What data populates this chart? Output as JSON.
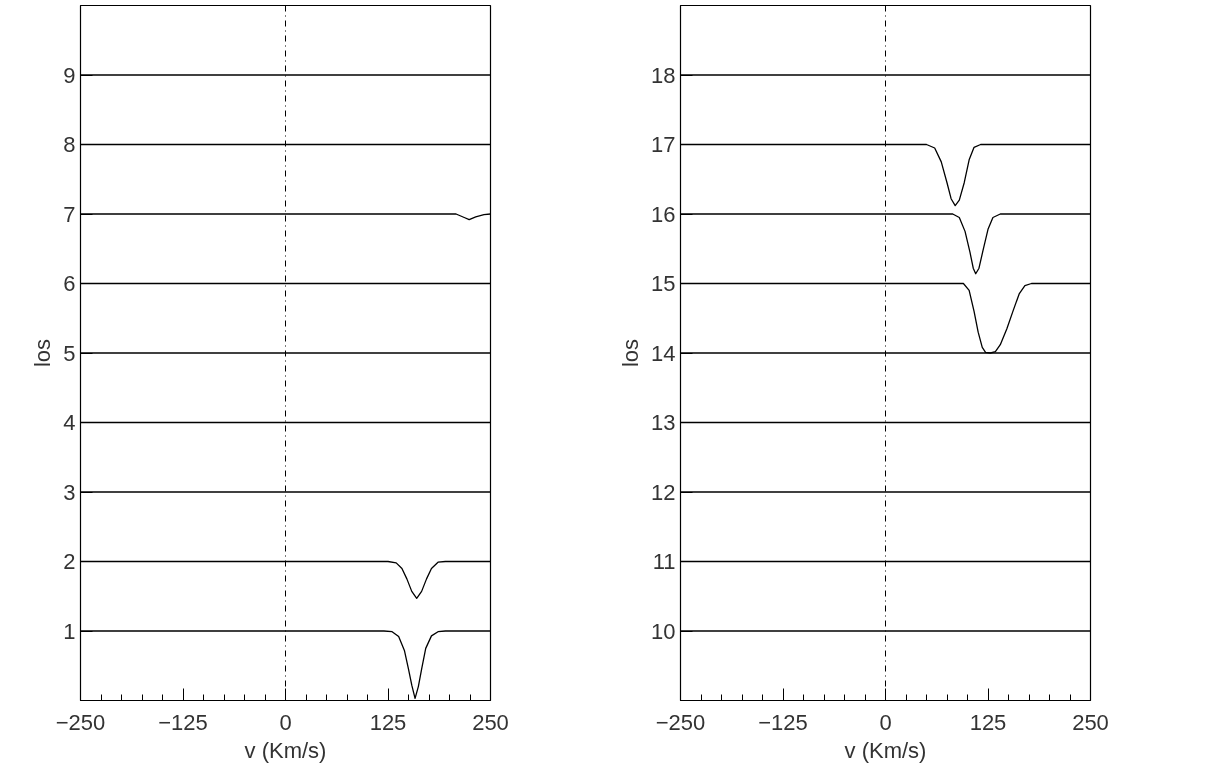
{
  "chart_data": [
    {
      "type": "line",
      "xlabel": "v (Km/s)",
      "ylabel": "los",
      "xlim": [
        -250,
        250
      ],
      "ylim": [
        0,
        10
      ],
      "xticks": [
        -250,
        {
          "value": -225,
          "label": null
        },
        {
          "value": -200,
          "label": null
        },
        {
          "value": -175,
          "label": null
        },
        {
          "value": -150,
          "label": null
        },
        -125,
        {
          "value": -100,
          "label": null
        },
        {
          "value": -75,
          "label": null
        },
        {
          "value": -50,
          "label": null
        },
        {
          "value": -25,
          "label": null
        },
        0,
        {
          "value": 25,
          "label": null
        },
        {
          "value": 50,
          "label": null
        },
        {
          "value": 75,
          "label": null
        },
        {
          "value": 100,
          "label": null
        },
        125,
        {
          "value": 150,
          "label": null
        },
        {
          "value": 175,
          "label": null
        },
        {
          "value": 200,
          "label": null
        },
        {
          "value": 225,
          "label": null
        },
        250
      ],
      "yticks": [
        1,
        2,
        3,
        4,
        5,
        6,
        7,
        8,
        9
      ],
      "grid": false,
      "line_style": "solid",
      "ref_lines": [
        {
          "axis": "x",
          "value": 0,
          "color": "#000000",
          "line_style": "dashdot"
        }
      ],
      "series": [
        {
          "color": "#000000",
          "x": [
            -250,
            120,
            130,
            138,
            145,
            150,
            154,
            158,
            162,
            166,
            171,
            178,
            186,
            195,
            250
          ],
          "values": [
            1,
            1,
            0.99,
            0.92,
            0.72,
            0.45,
            0.22,
            0.03,
            0.2,
            0.45,
            0.75,
            0.93,
            0.99,
            1,
            1
          ]
        },
        {
          "color": "#000000",
          "x": [
            -250,
            125,
            135,
            142,
            148,
            154,
            160,
            166,
            172,
            178,
            186,
            195,
            250
          ],
          "values": [
            2,
            2,
            1.98,
            1.9,
            1.75,
            1.57,
            1.47,
            1.57,
            1.75,
            1.9,
            1.99,
            2,
            2
          ]
        },
        {
          "color": "#000000",
          "x": [
            -250,
            250
          ],
          "values": [
            3,
            3
          ]
        },
        {
          "color": "#000000",
          "x": [
            -250,
            250
          ],
          "values": [
            4,
            4
          ]
        },
        {
          "color": "#000000",
          "x": [
            -250,
            250
          ],
          "values": [
            5,
            5
          ]
        },
        {
          "color": "#000000",
          "x": [
            -250,
            250
          ],
          "values": [
            6,
            6
          ]
        },
        {
          "color": "#000000",
          "x": [
            -250,
            208,
            218,
            224,
            232,
            242,
            250
          ],
          "values": [
            7,
            7,
            6.95,
            6.92,
            6.96,
            6.99,
            7
          ]
        },
        {
          "color": "#000000",
          "x": [
            -250,
            250
          ],
          "values": [
            8,
            8
          ]
        },
        {
          "color": "#000000",
          "x": [
            -250,
            250
          ],
          "values": [
            9,
            9
          ]
        }
      ]
    },
    {
      "type": "line",
      "xlabel": "v (Km/s)",
      "ylabel": "los",
      "xlim": [
        -250,
        250
      ],
      "ylim": [
        9,
        19
      ],
      "xticks": [
        -250,
        {
          "value": -225,
          "label": null
        },
        {
          "value": -200,
          "label": null
        },
        {
          "value": -175,
          "label": null
        },
        {
          "value": -150,
          "label": null
        },
        -125,
        {
          "value": -100,
          "label": null
        },
        {
          "value": -75,
          "label": null
        },
        {
          "value": -50,
          "label": null
        },
        {
          "value": -25,
          "label": null
        },
        0,
        {
          "value": 25,
          "label": null
        },
        {
          "value": 50,
          "label": null
        },
        {
          "value": 75,
          "label": null
        },
        {
          "value": 100,
          "label": null
        },
        125,
        {
          "value": 150,
          "label": null
        },
        {
          "value": 175,
          "label": null
        },
        {
          "value": 200,
          "label": null
        },
        {
          "value": 225,
          "label": null
        },
        250
      ],
      "yticks": [
        10,
        11,
        12,
        13,
        14,
        15,
        16,
        17,
        18
      ],
      "grid": false,
      "line_style": "solid",
      "ref_lines": [
        {
          "axis": "x",
          "value": 0,
          "color": "#000000",
          "line_style": "dashdot"
        }
      ],
      "series": [
        {
          "color": "#000000",
          "x": [
            -250,
            250
          ],
          "values": [
            10,
            10
          ]
        },
        {
          "color": "#000000",
          "x": [
            -250,
            250
          ],
          "values": [
            11,
            11
          ]
        },
        {
          "color": "#000000",
          "x": [
            -250,
            250
          ],
          "values": [
            12,
            12
          ]
        },
        {
          "color": "#000000",
          "x": [
            -250,
            250
          ],
          "values": [
            13,
            13
          ]
        },
        {
          "color": "#000000",
          "x": [
            -250,
            250
          ],
          "values": [
            14,
            14
          ]
        },
        {
          "color": "#000000",
          "x": [
            -250,
            95,
            102,
            108,
            113,
            118,
            122,
            128,
            134,
            140,
            148,
            156,
            163,
            170,
            178,
            250
          ],
          "values": [
            15,
            15,
            14.9,
            14.6,
            14.3,
            14.08,
            14.01,
            14.0,
            14.02,
            14.12,
            14.35,
            14.62,
            14.85,
            14.97,
            15,
            15
          ]
        },
        {
          "color": "#000000",
          "x": [
            -250,
            82,
            90,
            97,
            103,
            107,
            110,
            114,
            119,
            125,
            131,
            140,
            250
          ],
          "values": [
            16,
            16,
            15.95,
            15.75,
            15.45,
            15.22,
            15.14,
            15.22,
            15.48,
            15.78,
            15.95,
            16,
            16
          ]
        },
        {
          "color": "#000000",
          "x": [
            -250,
            50,
            60,
            68,
            75,
            80,
            85,
            90,
            96,
            102,
            108,
            116,
            250
          ],
          "values": [
            17,
            17,
            16.95,
            16.75,
            16.45,
            16.22,
            16.12,
            16.2,
            16.45,
            16.78,
            16.96,
            17,
            17
          ]
        },
        {
          "color": "#000000",
          "x": [
            -250,
            250
          ],
          "values": [
            18,
            18
          ]
        }
      ]
    }
  ]
}
